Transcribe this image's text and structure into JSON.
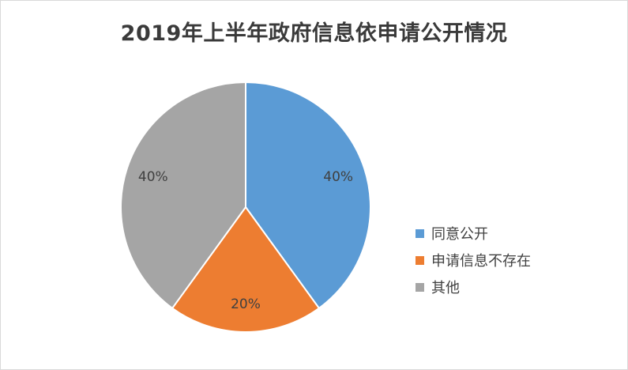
{
  "chart_data": {
    "type": "pie",
    "title": "2019年上半年政府信息依申请公开情况",
    "categories": [
      "同意公开",
      "申请信息不存在",
      "其他"
    ],
    "values": [
      40,
      20,
      40
    ],
    "labels": [
      "40%",
      "20%",
      "40%"
    ],
    "colors": [
      "#5b9bd5",
      "#ed7d31",
      "#a5a5a5"
    ],
    "legend_position": "right",
    "start_angle": "12 o'clock",
    "direction": "clockwise"
  }
}
